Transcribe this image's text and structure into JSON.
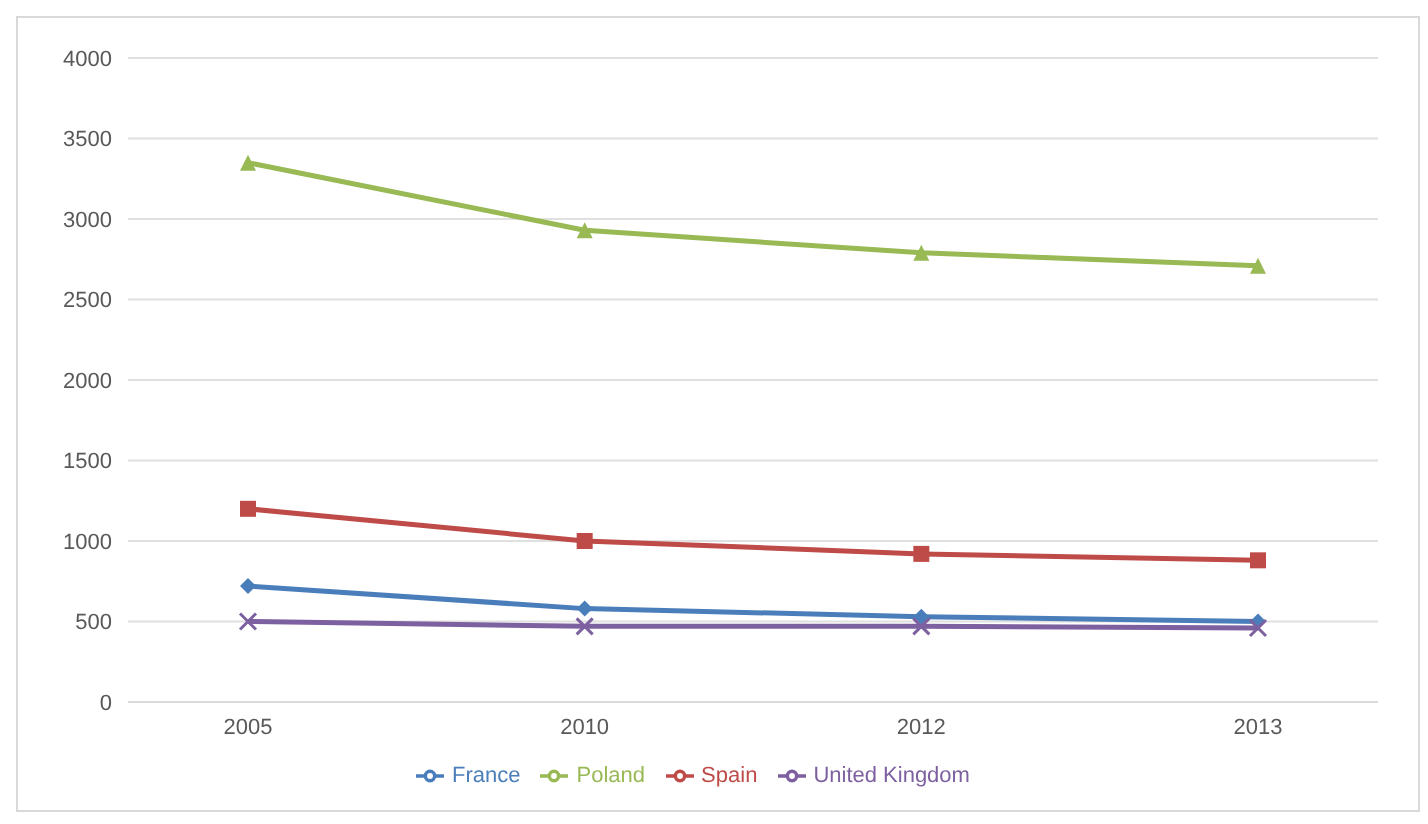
{
  "chart_data": {
    "type": "line",
    "categories": [
      "2005",
      "2010",
      "2012",
      "2013"
    ],
    "series": [
      {
        "name": "France",
        "color": "#4a7ebb",
        "marker": "diamond",
        "values": [
          720,
          580,
          530,
          500
        ]
      },
      {
        "name": "Spain",
        "color": "#be4b48",
        "marker": "square",
        "values": [
          1200,
          1000,
          920,
          880
        ]
      },
      {
        "name": "Poland",
        "color": "#98b954",
        "marker": "triangle",
        "values": [
          3350,
          2930,
          2790,
          2710
        ]
      },
      {
        "name": "United Kingdom",
        "color": "#7d60a0",
        "marker": "cross",
        "values": [
          500,
          470,
          470,
          460
        ]
      }
    ],
    "ylim": [
      0,
      4000
    ],
    "yticks": [
      0,
      500,
      1000,
      1500,
      2000,
      2500,
      3000,
      3500,
      4000
    ],
    "grid": "y",
    "legend": "bottom",
    "line_style": "solid"
  }
}
